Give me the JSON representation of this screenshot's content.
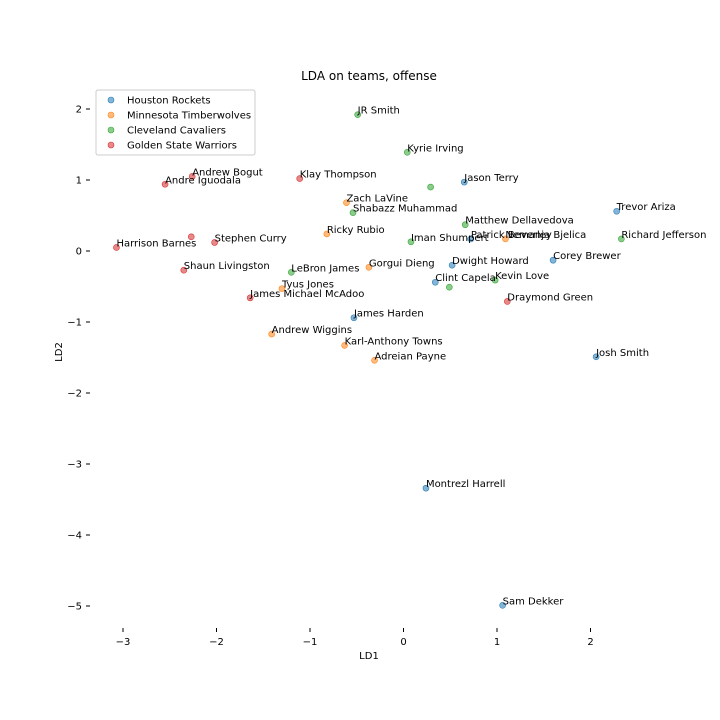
{
  "chart_data": {
    "type": "scatter",
    "title": "LDA on teams, offense",
    "xlabel": "LD1",
    "ylabel": "LD2",
    "xlim": [
      -3.4,
      2.5
    ],
    "ylim": [
      -5.4,
      2.4
    ],
    "xticks": [
      -3,
      -2,
      -1,
      0,
      1,
      2
    ],
    "yticks": [
      2,
      1,
      0,
      -1,
      -2,
      -3,
      -4,
      -5
    ],
    "tick_labels_x": [
      "−3",
      "−2",
      "−1",
      "0",
      "1",
      "2"
    ],
    "tick_labels_y": [
      "2",
      "1",
      "0",
      "−1",
      "−2",
      "−3",
      "−4",
      "−5"
    ],
    "grid": false,
    "legend_position": "top-left",
    "series": [
      {
        "name": "Houston Rockets",
        "color": "#1f77b4",
        "points": [
          {
            "label": "Jason Terry",
            "x": 0.65,
            "y": 0.97
          },
          {
            "label": "Trevor Ariza",
            "x": 2.28,
            "y": 0.56
          },
          {
            "label": "Patrick Beverley",
            "x": 0.72,
            "y": 0.17
          },
          {
            "label": "Corey Brewer",
            "x": 1.6,
            "y": -0.13
          },
          {
            "label": "Dwight Howard",
            "x": 0.52,
            "y": -0.2
          },
          {
            "label": "Clint Capela",
            "x": 0.34,
            "y": -0.44
          },
          {
            "label": "James Harden",
            "x": -0.53,
            "y": -0.94
          },
          {
            "label": "Josh Smith",
            "x": 2.06,
            "y": -1.49
          },
          {
            "label": "Montrezl Harrell",
            "x": 0.24,
            "y": -3.34
          },
          {
            "label": "Sam Dekker",
            "x": 1.06,
            "y": -4.99
          }
        ]
      },
      {
        "name": "Minnesota Timberwolves",
        "color": "#ff7f0e",
        "points": [
          {
            "label": "Zach LaVine",
            "x": -0.61,
            "y": 0.68
          },
          {
            "label": "Ricky Rubio",
            "x": -0.82,
            "y": 0.24
          },
          {
            "label": "Nemanja Bjelica",
            "x": 1.09,
            "y": 0.17
          },
          {
            "label": "Gorgui Dieng",
            "x": -0.37,
            "y": -0.23
          },
          {
            "label": "Tyus Jones",
            "x": -1.3,
            "y": -0.53
          },
          {
            "label": "Andrew Wiggins",
            "x": -1.41,
            "y": -1.17
          },
          {
            "label": "Karl-Anthony Towns",
            "x": -0.63,
            "y": -1.33
          },
          {
            "label": "Adreian Payne",
            "x": -0.31,
            "y": -1.54
          }
        ]
      },
      {
        "name": "Cleveland Cavaliers",
        "color": "#2ca02c",
        "points": [
          {
            "label": "JR Smith",
            "x": -0.49,
            "y": 1.92
          },
          {
            "label": "Kyrie Irving",
            "x": 0.04,
            "y": 1.39
          },
          {
            "label": "",
            "x": 0.29,
            "y": 0.9
          },
          {
            "label": "Shabazz Muhammad",
            "x": -0.54,
            "y": 0.54
          },
          {
            "label": "Matthew Dellavedova",
            "x": 0.66,
            "y": 0.37
          },
          {
            "label": "Iman Shumpert",
            "x": 0.08,
            "y": 0.13
          },
          {
            "label": "Richard Jefferson",
            "x": 2.33,
            "y": 0.17
          },
          {
            "label": "LeBron James",
            "x": -1.2,
            "y": -0.3
          },
          {
            "label": "Kevin Love",
            "x": 0.98,
            "y": -0.41
          },
          {
            "label": "",
            "x": 0.49,
            "y": -0.51
          }
        ]
      },
      {
        "name": "Golden State Warriors",
        "color": "#d62728",
        "points": [
          {
            "label": "Andrew Bogut",
            "x": -2.26,
            "y": 1.05
          },
          {
            "label": "Andre Iguodala",
            "x": -2.55,
            "y": 0.94
          },
          {
            "label": "Klay Thompson",
            "x": -1.11,
            "y": 1.02
          },
          {
            "label": "",
            "x": -2.27,
            "y": 0.2
          },
          {
            "label": "Stephen Curry",
            "x": -2.02,
            "y": 0.12
          },
          {
            "label": "Harrison Barnes",
            "x": -3.07,
            "y": 0.05
          },
          {
            "label": "Shaun Livingston",
            "x": -2.35,
            "y": -0.27
          },
          {
            "label": "James Michael McAdoo",
            "x": -1.64,
            "y": -0.66
          },
          {
            "label": "Draymond Green",
            "x": 1.11,
            "y": -0.71
          }
        ]
      }
    ]
  }
}
